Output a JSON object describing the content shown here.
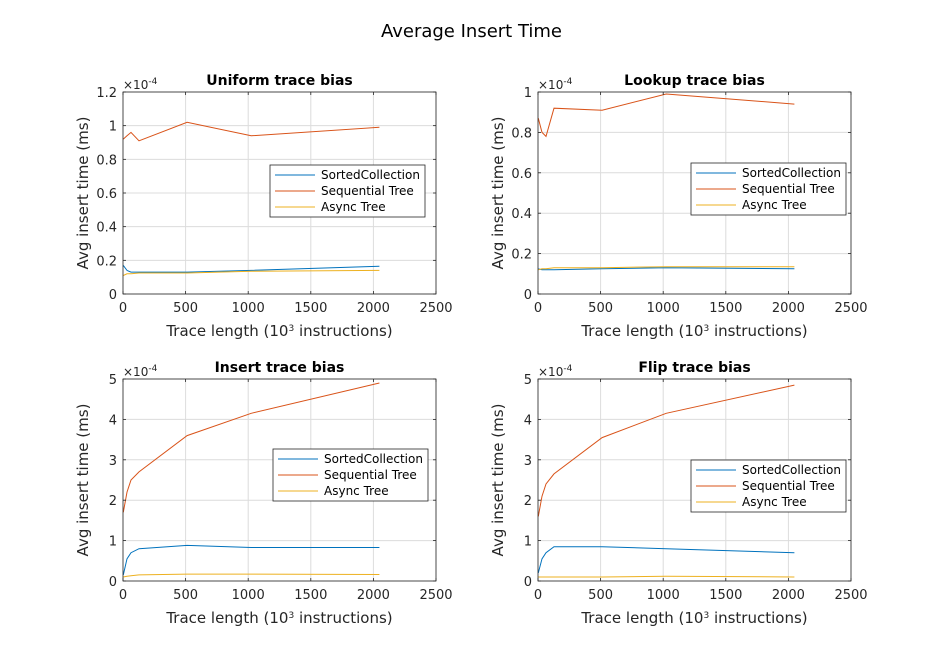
{
  "figure": {
    "title": "Average Insert Time"
  },
  "colors": {
    "SortedCollection": "#0072BD",
    "Sequential Tree": "#D95319",
    "Async Tree": "#EDB120",
    "axis": "#262626",
    "grid": "#dcdcdc"
  },
  "chart_data": [
    {
      "type": "line",
      "title": "Uniform trace bias",
      "xlabel": "Trace length (10^3 instructions)",
      "ylabel": "Avg insert time (ms)",
      "exponent_label": "×10^-4",
      "xlim": [
        0,
        2500
      ],
      "ylim": [
        0,
        1.2
      ],
      "xticks": [
        0,
        500,
        1000,
        1500,
        2000,
        2500
      ],
      "yticks": [
        0,
        0.2,
        0.4,
        0.6,
        0.8,
        1,
        1.2
      ],
      "ytick_labels": [
        "0",
        "0.2",
        "0.4",
        "0.6",
        "0.8",
        "1",
        "1.2"
      ],
      "grid": true,
      "legend_position": "middle-right",
      "series": [
        {
          "name": "SortedCollection",
          "x": [
            2,
            32,
            64,
            128,
            512,
            1024,
            2048
          ],
          "y": [
            0.17,
            0.14,
            0.13,
            0.13,
            0.13,
            0.14,
            0.165
          ]
        },
        {
          "name": "Sequential Tree",
          "x": [
            2,
            32,
            64,
            128,
            512,
            1024,
            2048
          ],
          "y": [
            0.92,
            0.94,
            0.96,
            0.91,
            1.02,
            0.94,
            0.99
          ]
        },
        {
          "name": "Async Tree",
          "x": [
            2,
            32,
            64,
            128,
            512,
            1024,
            2048
          ],
          "y": [
            0.11,
            0.12,
            0.12,
            0.125,
            0.125,
            0.135,
            0.14
          ]
        }
      ]
    },
    {
      "type": "line",
      "title": "Lookup trace bias",
      "xlabel": "Trace length (10^3 instructions)",
      "ylabel": "Avg insert time (ms)",
      "exponent_label": "×10^-4",
      "xlim": [
        0,
        2500
      ],
      "ylim": [
        0,
        1
      ],
      "xticks": [
        0,
        500,
        1000,
        1500,
        2000,
        2500
      ],
      "yticks": [
        0,
        0.2,
        0.4,
        0.6,
        0.8,
        1
      ],
      "ytick_labels": [
        "0",
        "0.2",
        "0.4",
        "0.6",
        "0.8",
        "1"
      ],
      "grid": true,
      "legend_position": "upper-right",
      "series": [
        {
          "name": "SortedCollection",
          "x": [
            2,
            32,
            64,
            128,
            512,
            1024,
            2048
          ],
          "y": [
            0.125,
            0.12,
            0.12,
            0.12,
            0.125,
            0.13,
            0.125
          ]
        },
        {
          "name": "Sequential Tree",
          "x": [
            2,
            32,
            64,
            128,
            512,
            1024,
            2048
          ],
          "y": [
            0.87,
            0.8,
            0.78,
            0.92,
            0.91,
            0.99,
            0.94
          ]
        },
        {
          "name": "Async Tree",
          "x": [
            2,
            32,
            64,
            128,
            512,
            1024,
            2048
          ],
          "y": [
            0.12,
            0.125,
            0.125,
            0.13,
            0.13,
            0.135,
            0.135
          ]
        }
      ]
    },
    {
      "type": "line",
      "title": "Insert trace bias",
      "xlabel": "Trace length (10^3 instructions)",
      "ylabel": "Avg insert time (ms)",
      "exponent_label": "×10^-4",
      "xlim": [
        0,
        2500
      ],
      "ylim": [
        0,
        5
      ],
      "xticks": [
        0,
        500,
        1000,
        1500,
        2000,
        2500
      ],
      "yticks": [
        0,
        1,
        2,
        3,
        4,
        5
      ],
      "ytick_labels": [
        "0",
        "1",
        "2",
        "3",
        "4",
        "5"
      ],
      "grid": true,
      "legend_position": "middle-right",
      "series": [
        {
          "name": "SortedCollection",
          "x": [
            2,
            32,
            64,
            128,
            512,
            1024,
            2048
          ],
          "y": [
            0.15,
            0.55,
            0.7,
            0.8,
            0.88,
            0.83,
            0.83
          ]
        },
        {
          "name": "Sequential Tree",
          "x": [
            2,
            32,
            64,
            128,
            512,
            1024,
            2048
          ],
          "y": [
            1.7,
            2.2,
            2.5,
            2.7,
            3.6,
            4.15,
            4.9
          ]
        },
        {
          "name": "Async Tree",
          "x": [
            2,
            32,
            64,
            128,
            512,
            1024,
            2048
          ],
          "y": [
            0.1,
            0.12,
            0.13,
            0.15,
            0.17,
            0.17,
            0.16
          ]
        }
      ]
    },
    {
      "type": "line",
      "title": "Flip trace bias",
      "xlabel": "Trace length (10^3 instructions)",
      "ylabel": "Avg insert time (ms)",
      "exponent_label": "×10^-4",
      "xlim": [
        0,
        2500
      ],
      "ylim": [
        0,
        5
      ],
      "xticks": [
        0,
        500,
        1000,
        1500,
        2000,
        2500
      ],
      "yticks": [
        0,
        1,
        2,
        3,
        4,
        5
      ],
      "ytick_labels": [
        "0",
        "1",
        "2",
        "3",
        "4",
        "5"
      ],
      "grid": true,
      "legend_position": "middle-right",
      "series": [
        {
          "name": "SortedCollection",
          "x": [
            2,
            32,
            64,
            128,
            512,
            1024,
            2048
          ],
          "y": [
            0.2,
            0.55,
            0.7,
            0.85,
            0.85,
            0.8,
            0.7
          ]
        },
        {
          "name": "Sequential Tree",
          "x": [
            2,
            32,
            64,
            128,
            512,
            1024,
            2048
          ],
          "y": [
            1.6,
            2.1,
            2.4,
            2.65,
            3.55,
            4.15,
            4.85
          ]
        },
        {
          "name": "Async Tree",
          "x": [
            2,
            32,
            64,
            128,
            512,
            1024,
            2048
          ],
          "y": [
            0.1,
            0.1,
            0.1,
            0.1,
            0.1,
            0.12,
            0.1
          ]
        }
      ]
    }
  ]
}
